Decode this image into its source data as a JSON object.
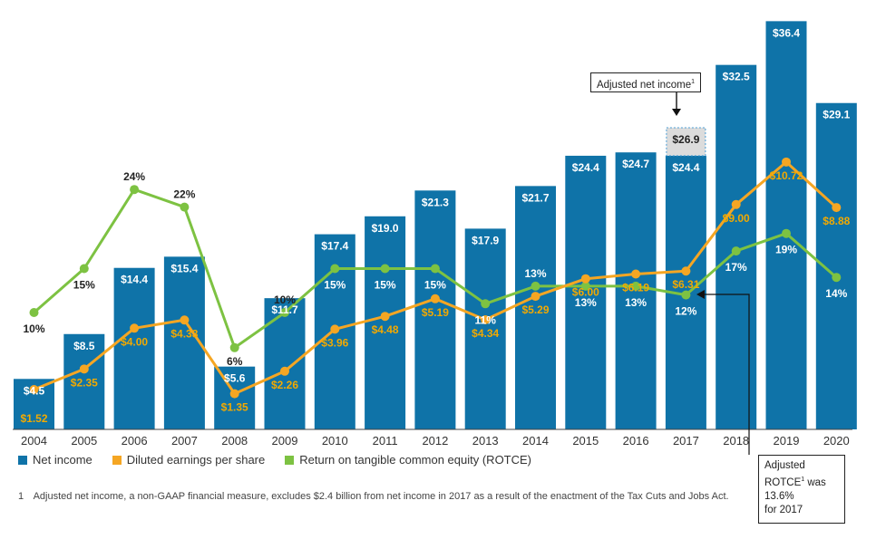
{
  "chart_data": {
    "type": "bar",
    "categories": [
      "2004",
      "2005",
      "2006",
      "2007",
      "2008",
      "2009",
      "2010",
      "2011",
      "2012",
      "2013",
      "2014",
      "2015",
      "2016",
      "2017",
      "2018",
      "2019",
      "2020"
    ],
    "series": [
      {
        "name": "Net income",
        "type": "bar",
        "color": "#0f73a8",
        "values": [
          4.5,
          8.5,
          14.4,
          15.4,
          5.6,
          11.7,
          17.4,
          19.0,
          21.3,
          17.9,
          21.7,
          24.4,
          24.7,
          24.4,
          32.5,
          36.4,
          29.1
        ],
        "labels": [
          "$4.5",
          "$8.5",
          "$14.4",
          "$15.4",
          "$5.6",
          "$11.7",
          "$17.4",
          "$19.0",
          "$21.3",
          "$17.9",
          "$21.7",
          "$24.4",
          "$24.7",
          "$24.4",
          "$32.5",
          "$36.4",
          "$29.1"
        ]
      },
      {
        "name": "Diluted earnings per share",
        "type": "line",
        "color": "#f5a623",
        "values": [
          1.52,
          2.35,
          4.0,
          4.33,
          1.35,
          2.26,
          3.96,
          4.48,
          5.19,
          4.34,
          5.29,
          6.0,
          6.19,
          6.31,
          9.0,
          10.72,
          8.88
        ],
        "labels": [
          "$1.52",
          "$2.35",
          "$4.00",
          "$4.33",
          "$1.35",
          "$2.26",
          "$3.96",
          "$4.48",
          "$5.19",
          "$4.34",
          "$5.29",
          "$6.00",
          "$6.19",
          "$6.31",
          "$9.00",
          "$10.72",
          "$8.88"
        ]
      },
      {
        "name": "Return on tangible common equity (ROTCE)",
        "type": "line",
        "color": "#7dc242",
        "values": [
          10,
          15,
          24,
          22,
          6,
          10,
          15,
          15,
          15,
          11,
          13,
          13,
          13,
          12,
          17,
          19,
          14
        ],
        "labels": [
          "10%",
          "15%",
          "24%",
          "22%",
          "6%",
          "10%",
          "15%",
          "15%",
          "15%",
          "11%",
          "13%",
          "13%",
          "13%",
          "12%",
          "17%",
          "19%",
          "14%"
        ]
      }
    ],
    "adjusted_net_income_2017": {
      "value": 26.9,
      "label": "$26.9"
    },
    "annotations": {
      "adjusted_net_income_label": "Adjusted net income",
      "adjusted_rotce_lines": [
        "Adjusted",
        "ROTCE",
        "was",
        "13.6%",
        "for 2017"
      ],
      "superscript": "1"
    },
    "xlabel": "",
    "ylabel": "",
    "ylim": [
      0,
      38
    ],
    "grid": false,
    "legend_position": "bottom-left"
  },
  "footnote": {
    "number": "1",
    "text": "Adjusted net income, a non-GAAP financial measure, excludes $2.4 billion from net income in 2017 as a result of the enactment of the Tax Cuts and Jobs Act."
  }
}
